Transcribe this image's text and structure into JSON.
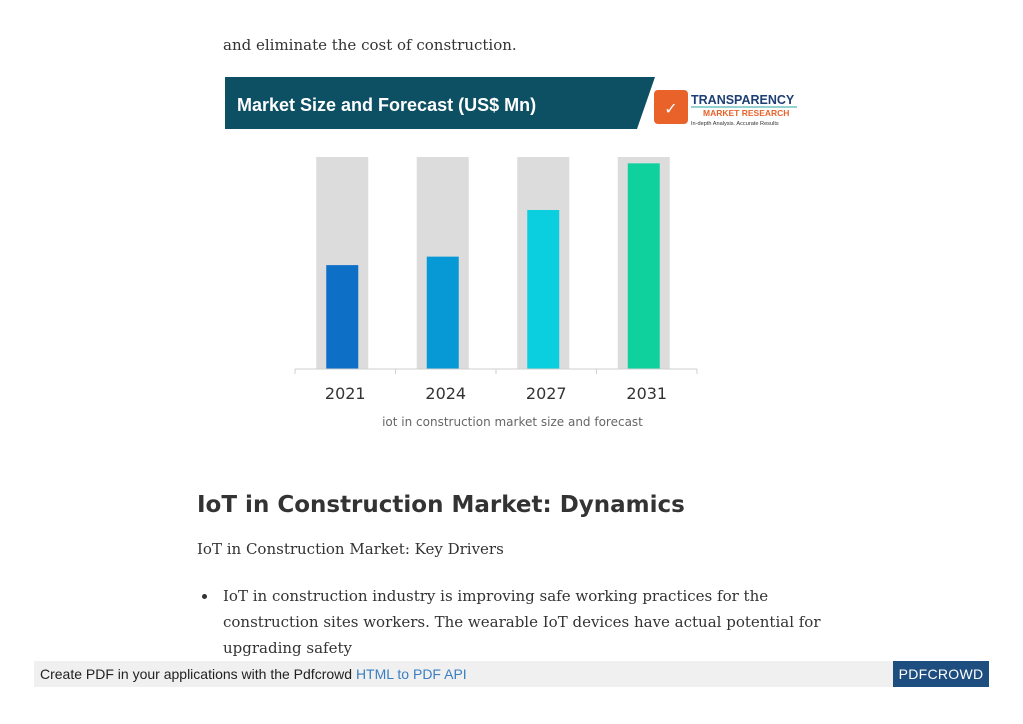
{
  "document": {
    "lead_text": "and eliminate the cost of construction.",
    "figure_caption": "iot in construction market size and forecast",
    "section_heading": "IoT in Construction Market: Dynamics",
    "sub_heading": "IoT in Construction Market: Key Drivers",
    "bullets": [
      "IoT in construction industry is improving safe working practices for the construction sites workers. The wearable IoT devices have actual potential for upgrading safety"
    ]
  },
  "figure": {
    "banner_title": "Market Size and Forecast (US$ Mn)",
    "logo": {
      "brand": "TRANSPARENCY",
      "sub": "MARKET RESEARCH",
      "tagline": "In-depth Analysis. Accurate Results",
      "icon": "tmr-logo-icon"
    },
    "colors": {
      "banner": "#0d4f63",
      "track": "#dcdcdc",
      "logo_orange": "#e8622a",
      "logo_navy": "#1e3f73",
      "logo_teal": "#2aa7a0"
    }
  },
  "chart_data": {
    "type": "bar",
    "title": "Market Size and Forecast (US$ Mn)",
    "categories": [
      "2021",
      "2024",
      "2027",
      "2031"
    ],
    "values": [
      0.49,
      0.53,
      0.75,
      0.97
    ],
    "value_note": "",
    "colors": [
      "#0e6fc7",
      "#0798d6",
      "#0bcfde",
      "#0ed19e"
    ],
    "ylim": [
      0,
      1
    ],
    "grid": false,
    "legend": "none"
  },
  "footer": {
    "text": "Create PDF in your applications with the Pdfcrowd",
    "link": "HTML to PDF API",
    "brand": "PDFCROWD"
  }
}
